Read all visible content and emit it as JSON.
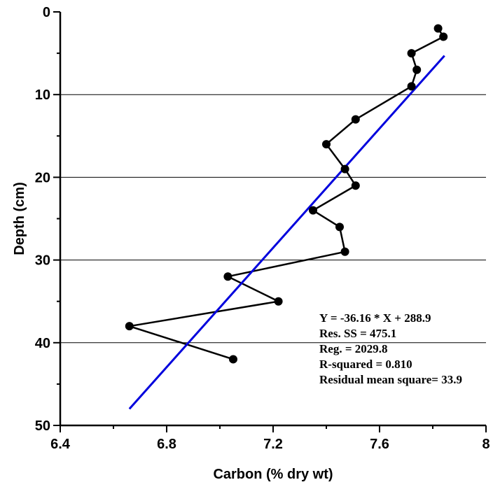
{
  "chart_data": {
    "type": "line",
    "xlabel": "Carbon (% dry wt)",
    "ylabel": "Depth (cm)",
    "xlim": [
      6.4,
      8
    ],
    "ylim": [
      0,
      50
    ],
    "y_inverted": true,
    "x_ticks": [
      "6.4",
      "6.8",
      "7.2",
      "7.6",
      "8"
    ],
    "y_ticks": [
      "0",
      "10",
      "20",
      "30",
      "40",
      "50"
    ],
    "y_gridlines": [
      10,
      20,
      30,
      40
    ],
    "grid": "horizontal",
    "series": [
      {
        "kind": "profile",
        "color": "#000000",
        "marker": "circle",
        "x": [
          7.82,
          7.84,
          7.72,
          7.74,
          7.72,
          7.51,
          7.4,
          7.47,
          7.51,
          7.35,
          7.45,
          7.47,
          7.03,
          7.22,
          6.66,
          7.05
        ],
        "y": [
          2,
          3,
          5,
          7,
          9,
          13,
          16,
          19,
          21,
          24,
          26,
          29,
          32,
          35,
          38,
          42
        ]
      },
      {
        "kind": "regression",
        "color": "#0000dd",
        "x": [
          6.66,
          7.844
        ],
        "y": [
          48,
          5.3
        ]
      }
    ],
    "annotations": [
      "Y = -36.16 * X + 288.9",
      "Res. SS = 475.1",
      "Reg. = 2029.8",
      "R-squared = 0.810",
      "Residual mean square= 33.9"
    ]
  }
}
